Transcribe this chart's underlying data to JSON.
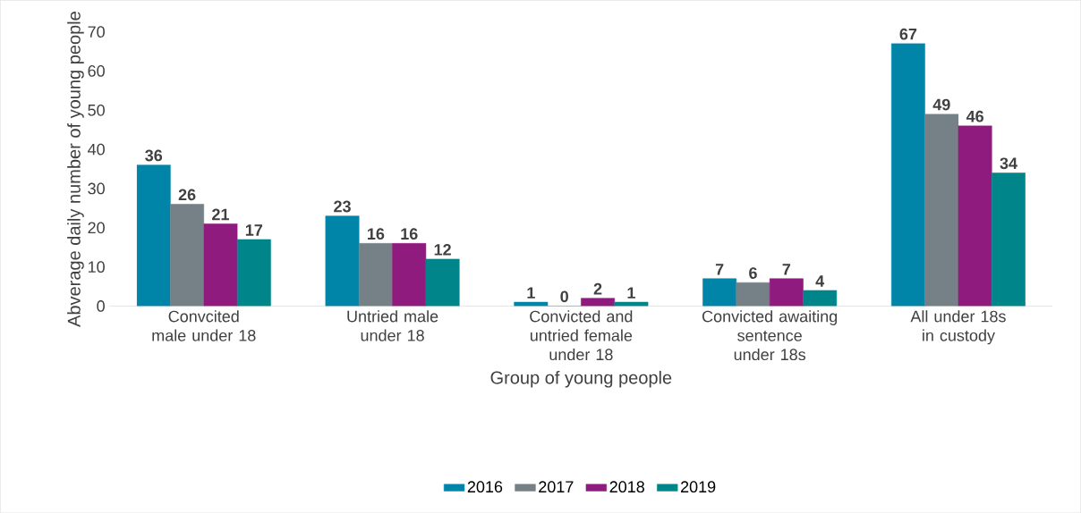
{
  "chart_data": {
    "type": "bar",
    "xlabel": "Group of young people",
    "ylabel": "Abverage daily number of young people",
    "categories": [
      "Convcited male under 18",
      "Untried male under 18",
      "Convicted and untried female under 18",
      "Convicted awaiting sentence under 18s",
      "All under 18s in custody"
    ],
    "series": [
      {
        "name": "2016",
        "color": "#0085a8",
        "values": [
          36,
          23,
          1,
          7,
          67
        ]
      },
      {
        "name": "2017",
        "color": "#768087",
        "values": [
          26,
          16,
          0,
          6,
          49
        ]
      },
      {
        "name": "2018",
        "color": "#901b7f",
        "values": [
          21,
          16,
          2,
          7,
          46
        ]
      },
      {
        "name": "2019",
        "color": "#00868a",
        "values": [
          17,
          12,
          1,
          4,
          34
        ]
      }
    ],
    "ylim": [
      0,
      70
    ],
    "yticks": [
      0,
      10,
      20,
      30,
      40,
      50,
      60,
      70
    ],
    "data_labels": true,
    "legend": "bottom",
    "grid": false
  }
}
